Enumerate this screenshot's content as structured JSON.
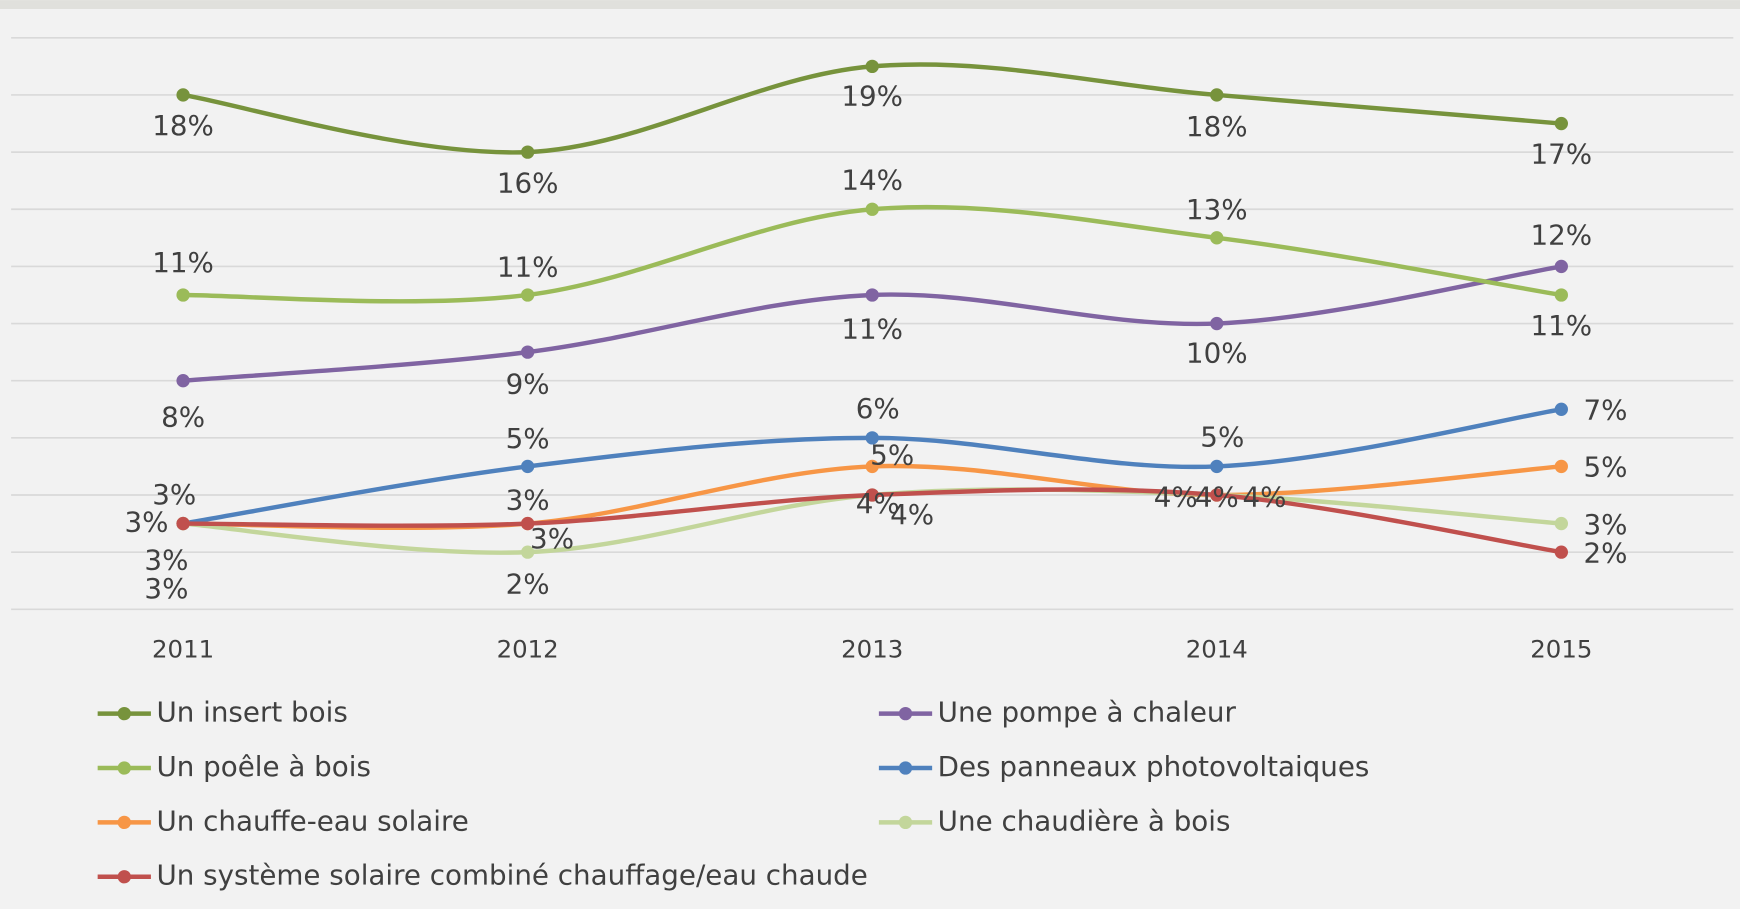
{
  "chart_data": {
    "type": "line",
    "categories": [
      "2011",
      "2012",
      "2013",
      "2014",
      "2015"
    ],
    "ylim": [
      0,
      20
    ],
    "yticks": [
      0,
      2,
      4,
      6,
      8,
      10,
      12,
      14,
      16,
      18,
      20
    ],
    "grid": true,
    "series": [
      {
        "name": "Un insert bois",
        "color": "#77933c",
        "values": [
          18,
          16,
          19,
          18,
          17
        ]
      },
      {
        "name": "Une pompe à chaleur",
        "color": "#8064a2",
        "values": [
          8,
          9,
          11,
          10,
          12
        ]
      },
      {
        "name": "Un poêle à bois",
        "color": "#9bbb59",
        "values": [
          11,
          11,
          14,
          13,
          11
        ]
      },
      {
        "name": "Des panneaux photovoltaiques",
        "color": "#4f81bd",
        "values": [
          3,
          5,
          6,
          5,
          7
        ]
      },
      {
        "name": "Un chauffe-eau solaire",
        "color": "#f79646",
        "values": [
          3,
          3,
          5,
          4,
          5
        ]
      },
      {
        "name": "Une chaudière à bois",
        "color": "#c3d69b",
        "values": [
          3,
          2,
          4,
          4,
          3
        ]
      },
      {
        "name": "Un système solaire combiné chauffage/eau chaude",
        "color": "#c0504d",
        "values": [
          3,
          3,
          4,
          4,
          2
        ]
      }
    ]
  }
}
